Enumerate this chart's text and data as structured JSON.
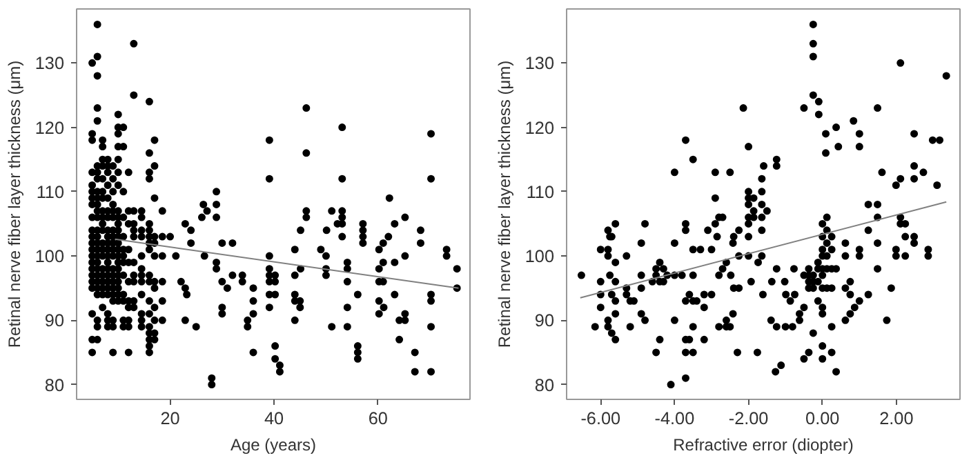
{
  "chart_data": [
    {
      "type": "scatter",
      "xlabel": "Age (years)",
      "ylabel": "Retinal nerve fiber layer thickness (μm)",
      "xlim": [
        2,
        77.7
      ],
      "ylim": [
        77.7,
        138.4
      ],
      "xticks": [
        20,
        40,
        60
      ],
      "yticks": [
        80,
        90,
        100,
        110,
        120,
        130
      ],
      "grid": false,
      "series": [
        {
          "color": "#000000",
          "marker": "circle",
          "x": [
            5,
            5,
            5,
            5,
            5,
            5,
            5,
            5,
            5,
            5,
            5,
            5,
            5,
            5,
            5,
            5,
            5,
            5,
            5,
            5,
            5,
            5,
            6,
            6,
            6,
            6,
            6,
            6,
            6,
            6,
            6,
            6,
            6,
            6,
            6,
            6,
            6,
            6,
            6,
            6,
            6,
            6,
            6,
            6,
            6,
            6,
            6,
            6,
            6,
            7,
            7,
            7,
            7,
            7,
            7,
            7,
            7,
            7,
            7,
            7,
            7,
            7,
            7,
            7,
            7,
            7,
            7,
            7,
            7,
            8,
            8,
            8,
            8,
            8,
            8,
            8,
            8,
            8,
            8,
            8,
            8,
            8,
            8,
            8,
            8,
            8,
            8,
            8,
            8,
            8,
            9,
            9,
            9,
            9,
            9,
            9,
            9,
            9,
            9,
            9,
            9,
            9,
            9,
            9,
            9,
            9,
            9,
            9,
            9,
            9,
            10,
            10,
            10,
            10,
            10,
            10,
            10,
            10,
            10,
            10,
            10,
            10,
            10,
            10,
            10,
            10,
            10,
            10,
            10,
            10,
            10,
            10,
            11,
            11,
            11,
            11,
            11,
            11,
            11,
            11,
            11,
            11,
            11,
            11,
            11,
            12,
            12,
            12,
            12,
            12,
            12,
            12,
            12,
            12,
            12,
            12,
            13,
            13,
            13,
            13,
            13,
            13,
            13,
            13,
            13,
            13,
            13,
            14.5,
            14.5,
            14.5,
            14.5,
            14.5,
            14.5,
            14.5,
            14.5,
            14.5,
            14.5,
            14.5,
            14.5,
            16,
            16,
            16,
            16,
            16,
            16,
            16,
            16,
            16,
            16,
            16,
            16,
            16,
            16,
            16,
            16,
            16,
            16,
            17,
            17,
            17,
            17,
            17,
            17,
            17,
            17,
            17,
            17,
            17,
            17,
            18.5,
            18.5,
            18.5,
            18.5,
            18.5,
            18.5,
            20,
            21.1,
            22.1,
            22.9,
            23.2,
            22.9,
            22.9,
            24,
            24,
            25,
            26.1,
            26.4,
            26.6,
            27.1,
            28.9,
            28.9,
            28.9,
            28.9,
            28.9,
            28,
            28,
            30,
            30,
            30,
            30,
            31,
            32,
            32,
            33.9,
            33.9,
            34.9,
            34.9,
            36,
            36,
            36,
            36,
            39.1,
            39.1,
            46.2,
            46.2,
            53.1,
            53.1,
            70.2,
            70.2,
            62.2,
            46.2,
            46.2,
            51.1,
            53.1,
            53.1,
            53.1,
            53.1,
            52.2,
            50.1,
            45.1,
            57.1,
            57.1,
            57.1,
            57.1,
            63.2,
            65.2,
            68.2,
            68.2,
            73.2,
            73.2,
            75.2,
            75.2,
            70.2,
            70.2,
            70.2,
            70.2,
            67.1,
            67.1,
            64.1,
            65.2,
            65.2,
            64.1,
            63.2,
            61.1,
            60.2,
            60.2,
            60.2,
            60.2,
            60.2,
            61,
            61,
            62,
            61,
            65.2,
            63.2,
            56.1,
            56.1,
            56.1,
            56.1,
            54.1,
            54.1,
            54.1,
            54.1,
            54.1,
            51.1,
            50,
            50,
            50,
            49,
            44,
            44,
            44,
            44,
            44,
            45,
            45,
            45.1,
            39.1,
            39.1,
            39.1,
            39.1,
            39.1,
            39.1,
            40.2,
            40.2,
            40.2,
            40.2,
            40.2,
            41.1,
            41.1
          ],
          "values": [
            130,
            119,
            118,
            113,
            111,
            110,
            109,
            108,
            106,
            104,
            103,
            102,
            101,
            100,
            99,
            98,
            97,
            96,
            95,
            91,
            87,
            85,
            136,
            131,
            128,
            123,
            121,
            114,
            113,
            112,
            110,
            109,
            108,
            107,
            106,
            104,
            103,
            102,
            101,
            100,
            99,
            98,
            97,
            96,
            95,
            94,
            90,
            89,
            87,
            118,
            117,
            115,
            114,
            112,
            110,
            109,
            107,
            106,
            105,
            104,
            102,
            101,
            100,
            98,
            97,
            96,
            95,
            94,
            92,
            115,
            114,
            113,
            111,
            109,
            107,
            106,
            104,
            103,
            102,
            101,
            100,
            99,
            98,
            97,
            96,
            95,
            94,
            91,
            90,
            89,
            114,
            112,
            110,
            108,
            107,
            106,
            104,
            103,
            102,
            101,
            100,
            98,
            97,
            96,
            95,
            94,
            93,
            90,
            89,
            85,
            122,
            120,
            119,
            117,
            115,
            113,
            111,
            107,
            106,
            105,
            104,
            103,
            102,
            101,
            100,
            99,
            98,
            97,
            96,
            95,
            94,
            93,
            120,
            117,
            110,
            106,
            103,
            101,
            100,
            99,
            97,
            94,
            93,
            90,
            89,
            113,
            107,
            105,
            101,
            99,
            96,
            93,
            92,
            90,
            89,
            85,
            133,
            125,
            107,
            105,
            104,
            103,
            99,
            97,
            96,
            93,
            92,
            107,
            106,
            104,
            103,
            100,
            98,
            97,
            96,
            94,
            91,
            90,
            89,
            124,
            116,
            113,
            112,
            105,
            104,
            103,
            102,
            101,
            97,
            96,
            93,
            91,
            89,
            88,
            87,
            86,
            85,
            118,
            114,
            109,
            103,
            102,
            100,
            96,
            95,
            92,
            90,
            88,
            87,
            107,
            103,
            100,
            96,
            93,
            90,
            103,
            100,
            96,
            95,
            94,
            90,
            105,
            104,
            102,
            89,
            106,
            108,
            100,
            107,
            110,
            108,
            106,
            99,
            98,
            81,
            80,
            96,
            92,
            91,
            102,
            95,
            102,
            97,
            97,
            96,
            90,
            89,
            95,
            93,
            91,
            85,
            118,
            112,
            123,
            116,
            120,
            112,
            119,
            112,
            109,
            107,
            106,
            107,
            107,
            106,
            105,
            103,
            105,
            104,
            104,
            105,
            104,
            103,
            102,
            105,
            106,
            104,
            102,
            101,
            100,
            98,
            95,
            94,
            93,
            89,
            82,
            85,
            82,
            87,
            91,
            90,
            90,
            94,
            92,
            93,
            91,
            101,
            98,
            96,
            99,
            96,
            103,
            102,
            100,
            99,
            94,
            86,
            85,
            84,
            92,
            89,
            99,
            98,
            96,
            89,
            100,
            98,
            97,
            101,
            101,
            97,
            94,
            93,
            90,
            93,
            92,
            98,
            100,
            98,
            97,
            96,
            94,
            92,
            97,
            96,
            94,
            86,
            84,
            83,
            82
          ]
        },
        {
          "type": "line",
          "color": "#808080",
          "x": [
            9.4,
            75.5
          ],
          "values": [
            102.6,
            95.0
          ]
        }
      ]
    },
    {
      "type": "scatter",
      "xlabel": "Refractive error (diopter)",
      "ylabel": "Retinal nerve fiber layer thickness (μm)",
      "xlim": [
        -6.92,
        3.72
      ],
      "ylim": [
        77.7,
        138.4
      ],
      "xticks": [
        {
          "value": -6,
          "label": "-6.00"
        },
        {
          "value": -4,
          "label": "-4.00"
        },
        {
          "value": -2,
          "label": "-2.00"
        },
        {
          "value": 0,
          "label": "0.00"
        },
        {
          "value": 2,
          "label": "2.00"
        }
      ],
      "yticks": [
        80,
        90,
        100,
        110,
        120,
        130
      ],
      "grid": false,
      "series": [
        {
          "color": "#000000",
          "marker": "circle",
          "x": [
            -6.52,
            -6.15,
            -6.0,
            -6.0,
            -6.0,
            -6.0,
            -5.8,
            -5.75,
            -5.7,
            -5.8,
            -5.8,
            -5.75,
            -5.6,
            -5.6,
            -5.7,
            -5.6,
            -5.6,
            -5.6,
            -5.8,
            -5.8,
            -5.7,
            -5.6,
            -5.3,
            -5.3,
            -5.3,
            -5.2,
            -5.1,
            -5.2,
            -4.9,
            -4.9,
            -4.9,
            -4.9,
            -4.8,
            -4.8,
            -4.6,
            -4.5,
            -4.5,
            -4.4,
            -4.4,
            -4.3,
            -4.3,
            -4.2,
            -4.5,
            -4.4,
            -4.1,
            -4.0,
            -4.0,
            -4.0,
            -4.0,
            -3.8,
            -3.7,
            -3.7,
            -3.7,
            -3.7,
            -3.7,
            -3.7,
            -3.7,
            -3.6,
            -3.6,
            -3.5,
            -3.5,
            -3.5,
            -3.5,
            -3.5,
            -3.5,
            -3.4,
            -3.3,
            -3.2,
            -3.2,
            -3.2,
            -3.1,
            -3.0,
            -3.0,
            -2.9,
            -2.9,
            -2.9,
            -2.85,
            -2.8,
            -2.8,
            -2.7,
            -2.7,
            -2.6,
            -2.6,
            -2.6,
            -2.5,
            -2.4,
            -2.4,
            -2.5,
            -2.14,
            -2.0,
            -1.24,
            -1.24,
            -1.59,
            -1.64,
            -2.0,
            -2.0,
            -2.0,
            -2.0,
            -2.0,
            -1.86,
            -1.86,
            -1.86,
            -1.64,
            -1.64,
            -1.64,
            -1.5,
            -1.64,
            -2.0,
            -2.26,
            -2.42,
            -2.26,
            -2.0,
            -1.74,
            -1.64,
            -1.37,
            -1.24,
            -1.02,
            -0.77,
            -0.5,
            -0.37,
            -0.37,
            -0.37,
            -0.37,
            -0.25,
            -0.25,
            -0.25,
            -0.12,
            -0.12,
            -0.12,
            -0.12,
            0,
            0,
            0,
            0,
            0,
            0,
            0,
            0,
            0.12,
            0.12,
            0.12,
            0.12,
            0.12,
            0.12,
            0.25,
            0.25,
            0.25,
            0.25,
            0.37,
            0.62,
            0.62,
            0.75,
            0.75,
            -0.5,
            -0.25,
            -0.25,
            -0.25,
            -0.25,
            -0.1,
            -0.1,
            0.09,
            0.09,
            0.37,
            0.43,
            0.84,
            1.0,
            1.0,
            1.49,
            2.11,
            2.48,
            2.98,
            3.17,
            3.35,
            3.1,
            2.73,
            2.48,
            2.48,
            1.99,
            2.11,
            1.61,
            1.49,
            1.49,
            1.24,
            2.11,
            2.11,
            2.24,
            2.24,
            2.48,
            2.48,
            1.99,
            1.99,
            2.24,
            2.86,
            2.86,
            1.49,
            1.24,
            1.49,
            1.0,
            1.0,
            0.62,
            1.0,
            0.87,
            0.75,
            1.24,
            1.86,
            1.74,
            0.62,
            0.25,
            0,
            -0.25,
            0,
            0.25,
            0.37,
            0,
            -0.5,
            -0.37,
            -1.12,
            -1.27,
            -1.76,
            -2.3,
            -1.0,
            -1.24,
            -1.39,
            -0.81,
            -0.62,
            -0.62,
            -0.87,
            -0.99,
            -0.75,
            -0.5,
            -1.61,
            -1.93,
            -2.26,
            -2.48,
            -2.42,
            -2.8
          ],
          "values": [
            97,
            89,
            101,
            96,
            94,
            92,
            104,
            103,
            103,
            101,
            100,
            97,
            99,
            105,
            94,
            93,
            96,
            91,
            90,
            89,
            88,
            87,
            100,
            95,
            94,
            93,
            93,
            89,
            102,
            97,
            95,
            91,
            90,
            105,
            96,
            98,
            97,
            99,
            96,
            98,
            96,
            97,
            85,
            87,
            80,
            113,
            102,
            97,
            90,
            97,
            118,
            105,
            104,
            93,
            87,
            85,
            81,
            94,
            87,
            115,
            101,
            97,
            93,
            89,
            85,
            93,
            101,
            94,
            92,
            87,
            104,
            101,
            94,
            113,
            109,
            105,
            103,
            97,
            106,
            106,
            98,
            90,
            89,
            99,
            113,
            103,
            95,
            89,
            123,
            117,
            115,
            114,
            114,
            112,
            110,
            109,
            108,
            106,
            105,
            109,
            107,
            106,
            110,
            108,
            106,
            107,
            104,
            103,
            104,
            102,
            100,
            100,
            99,
            100,
            96,
            98,
            96,
            98,
            97,
            98,
            97,
            96,
            95,
            97,
            96,
            95,
            99,
            98,
            96,
            93,
            105,
            103,
            101,
            100,
            98,
            97,
            95,
            92,
            106,
            104,
            102,
            100,
            98,
            95,
            103,
            101,
            98,
            95,
            98,
            102,
            100,
            96,
            94,
            123,
            136,
            133,
            131,
            125,
            124,
            122,
            119,
            116,
            120,
            117,
            121,
            119,
            117,
            123,
            130,
            119,
            118,
            118,
            128,
            111,
            113,
            114,
            112,
            111,
            112,
            113,
            108,
            106,
            108,
            106,
            105,
            105,
            103,
            103,
            102,
            101,
            100,
            100,
            101,
            100,
            102,
            104,
            98,
            101,
            100,
            95,
            93,
            92,
            91,
            94,
            95,
            90,
            90,
            89,
            91,
            88,
            86,
            85,
            82,
            84,
            84,
            85,
            83,
            82,
            85,
            85,
            89,
            89,
            90,
            89,
            90,
            91,
            93,
            94,
            94,
            92,
            94,
            96,
            95,
            97,
            91,
            89
          ]
        },
        {
          "type": "line",
          "color": "#808080",
          "x": [
            -6.55,
            3.35
          ],
          "values": [
            93.5,
            108.4
          ]
        }
      ]
    }
  ]
}
